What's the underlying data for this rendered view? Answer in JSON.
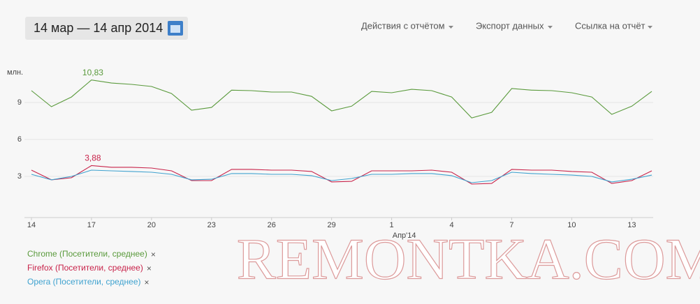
{
  "header": {
    "date_range": "14 мар — 14 апр 2014",
    "menu": [
      "Действия с отчётом",
      "Экспорт данных",
      "Ссылка на отчёт"
    ]
  },
  "chart_data": {
    "type": "line",
    "y_unit": "млн.",
    "x_period_label": "Апр'14",
    "categories": [
      "14",
      null,
      null,
      "17",
      null,
      null,
      "20",
      null,
      null,
      "23",
      null,
      null,
      "26",
      null,
      null,
      "29",
      null,
      null,
      "1",
      null,
      null,
      "4",
      null,
      null,
      "7",
      null,
      null,
      "10",
      null,
      null,
      "13",
      null
    ],
    "ylim": [
      0,
      12
    ],
    "yticks": [
      3,
      6,
      9
    ],
    "grid": true,
    "legend_remove": "×",
    "series": [
      {
        "name": "Chrome (Посетители, среднее)",
        "color": "#5a9a3c",
        "values": [
          9.96,
          8.66,
          9.45,
          10.83,
          10.58,
          10.47,
          10.3,
          9.73,
          8.38,
          8.6,
          10.0,
          9.96,
          9.85,
          9.85,
          9.5,
          8.32,
          8.7,
          9.9,
          9.79,
          10.07,
          9.96,
          9.45,
          7.75,
          8.2,
          10.13,
          10.0,
          9.96,
          9.79,
          9.45,
          8.04,
          8.7,
          9.9
        ],
        "value_labels": [
          null,
          null,
          null,
          "10,83",
          null,
          null,
          null,
          null,
          null,
          null,
          null,
          null,
          null,
          null,
          null,
          null,
          null,
          null,
          null,
          null,
          null,
          null,
          null,
          null,
          null,
          null,
          null,
          null,
          null,
          null,
          null,
          null
        ]
      },
      {
        "name": "Firefox (Посетители, среднее)",
        "color": "#c8234a",
        "values": [
          3.51,
          2.72,
          2.89,
          3.88,
          3.74,
          3.74,
          3.68,
          3.45,
          2.66,
          2.66,
          3.57,
          3.57,
          3.51,
          3.51,
          3.4,
          2.55,
          2.6,
          3.45,
          3.45,
          3.45,
          3.51,
          3.34,
          2.38,
          2.43,
          3.57,
          3.51,
          3.51,
          3.4,
          3.34,
          2.43,
          2.66,
          3.45
        ],
        "value_labels": [
          null,
          null,
          null,
          "3,88",
          null,
          null,
          null,
          null,
          null,
          null,
          null,
          null,
          null,
          null,
          null,
          null,
          null,
          null,
          null,
          null,
          null,
          null,
          null,
          null,
          null,
          null,
          null,
          null,
          null,
          null,
          null,
          null
        ]
      },
      {
        "name": "Opera (Посетители, среднее)",
        "color": "#3fa2cf",
        "values": [
          3.17,
          2.72,
          3.0,
          3.51,
          3.45,
          3.4,
          3.34,
          3.17,
          2.72,
          2.77,
          3.23,
          3.23,
          3.17,
          3.17,
          3.06,
          2.66,
          2.83,
          3.17,
          3.17,
          3.23,
          3.23,
          3.06,
          2.49,
          2.66,
          3.34,
          3.23,
          3.17,
          3.11,
          3.0,
          2.55,
          2.77,
          3.11
        ]
      }
    ]
  },
  "watermark": "REMONTKA.COM"
}
